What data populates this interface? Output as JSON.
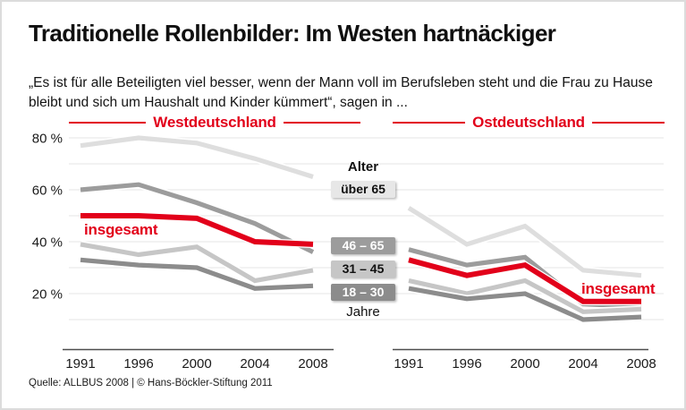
{
  "header": {
    "title": "Traditionelle Rollenbilder: Im Westen hartnäckiger",
    "subtitle": "„Es ist für alle Beteiligten viel besser, wenn der Mann voll im Berufsleben steht und die Frau zu Hause bleibt und sich um Haushalt und Kinder kümmert“, sagen in ..."
  },
  "legend": {
    "title": "Alter",
    "unit": "Jahre",
    "items": [
      {
        "label": "über 65",
        "box_bg": "#e7e7e7",
        "text_color": "#111111"
      },
      {
        "label": "46 – 65",
        "box_bg": "#9c9c9c",
        "text_color": "#ffffff"
      },
      {
        "label": "31 – 45",
        "box_bg": "#c6c6c6",
        "text_color": "#111111"
      },
      {
        "label": "18 – 30",
        "box_bg": "#8c8c8c",
        "text_color": "#ffffff"
      }
    ]
  },
  "chart_data": {
    "type": "line",
    "categories": [
      "1991",
      "1996",
      "2000",
      "2004",
      "2008"
    ],
    "unit": "%",
    "ylim": [
      0,
      85
    ],
    "yticks": [
      {
        "label": "80 %",
        "value": 80
      },
      {
        "label": "60 %",
        "value": 60
      },
      {
        "label": "40 %",
        "value": 40
      },
      {
        "label": "20 %",
        "value": 20
      }
    ],
    "gridline_values": [
      10,
      20,
      30,
      40,
      50,
      60,
      70,
      80
    ],
    "grid": "on",
    "colors": {
      "über 65": "#dedede",
      "46 – 65": "#9c9c9c",
      "31 – 45": "#c6c6c6",
      "18 – 30": "#8c8c8c",
      "insgesamt": "#e2001a"
    },
    "panels": [
      {
        "title": "Westdeutschland",
        "series_label": "insgesamt",
        "series": [
          {
            "name": "über 65",
            "values": [
              77,
              80,
              78,
              72,
              65
            ]
          },
          {
            "name": "46 – 65",
            "values": [
              60,
              62,
              55,
              47,
              36
            ]
          },
          {
            "name": "31 – 45",
            "values": [
              39,
              35,
              38,
              25,
              29
            ]
          },
          {
            "name": "18 – 30",
            "values": [
              33,
              31,
              30,
              22,
              23
            ]
          },
          {
            "name": "insgesamt",
            "values": [
              50,
              50,
              49,
              40,
              39
            ]
          }
        ]
      },
      {
        "title": "Ostdeutschland",
        "series_label": "insgesamt",
        "series": [
          {
            "name": "über 65",
            "values": [
              53,
              39,
              46,
              29,
              27
            ]
          },
          {
            "name": "46 – 65",
            "values": [
              37,
              31,
              34,
              16,
              15
            ]
          },
          {
            "name": "31 – 45",
            "values": [
              25,
              20,
              25,
              13,
              14
            ]
          },
          {
            "name": "18 – 30",
            "values": [
              22,
              18,
              20,
              10,
              11
            ]
          },
          {
            "name": "insgesamt",
            "values": [
              33,
              27,
              31,
              17,
              17
            ]
          }
        ]
      }
    ]
  },
  "footer": {
    "source": "Quelle: ALLBUS 2008 | © Hans-Böckler-Stiftung 2011"
  }
}
